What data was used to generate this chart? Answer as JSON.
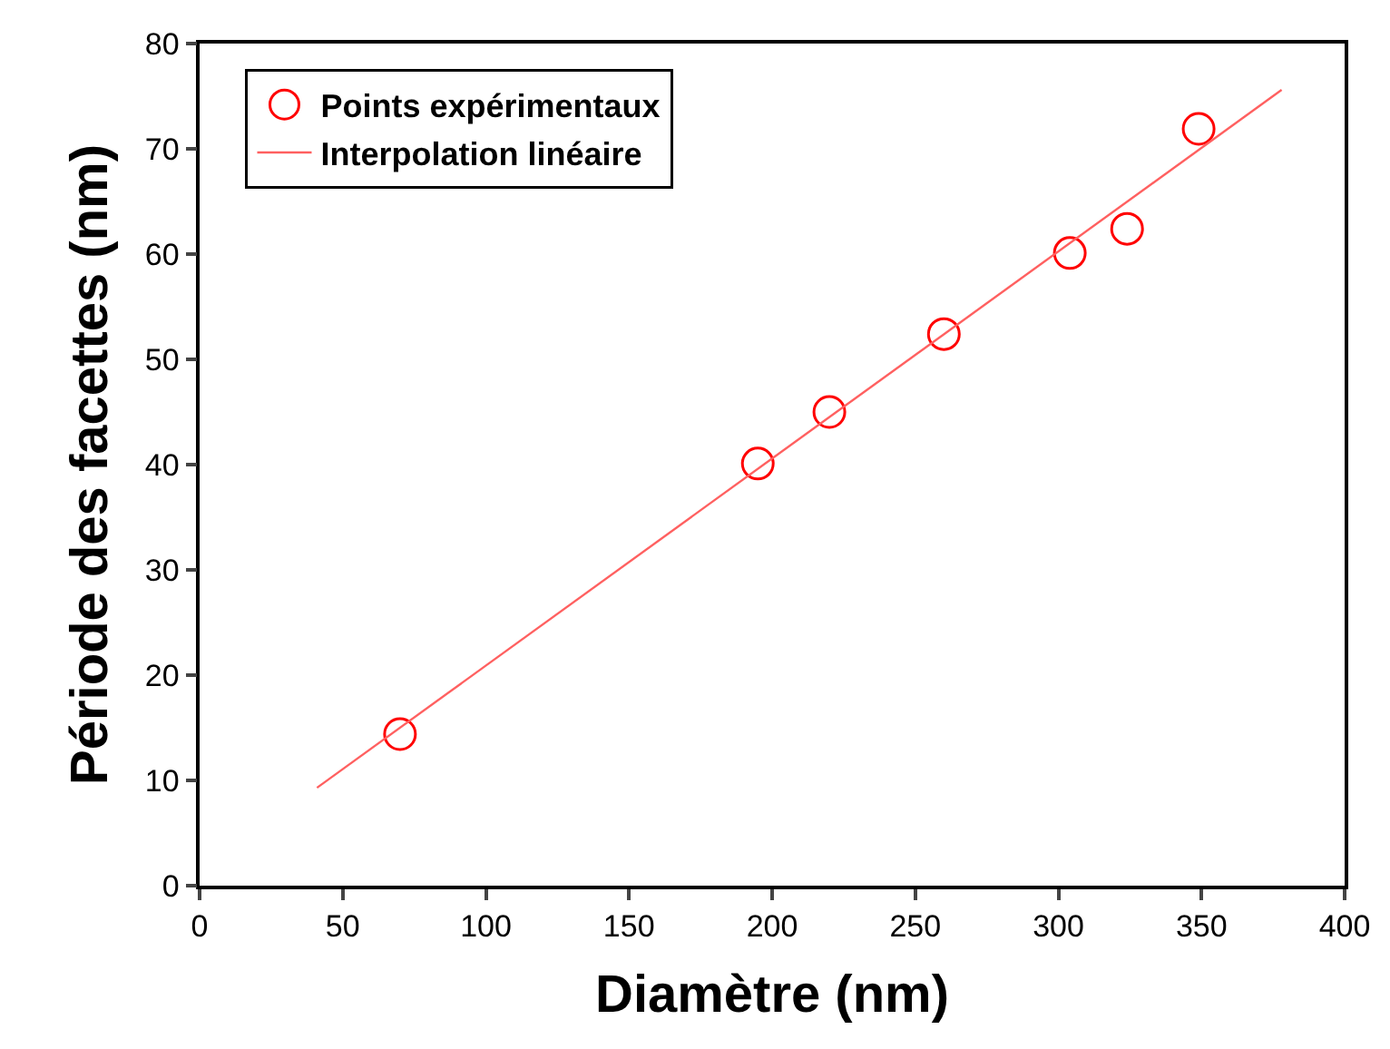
{
  "chart_data": {
    "type": "scatter",
    "xlabel": "Diamètre (nm)",
    "ylabel": "Période des facettes (nm)",
    "series": [
      {
        "name": "Points expérimentaux",
        "color": "#ff0000",
        "marker": "circle",
        "x": [
          70,
          195,
          220,
          260,
          304,
          324,
          349
        ],
        "values": [
          14.4,
          40.1,
          45.0,
          52.4,
          60.1,
          62.4,
          71.9
        ]
      },
      {
        "name": "Interpolation linéaire",
        "type": "line",
        "color": "#ff6060",
        "line_style": "solid",
        "x": [
          41,
          378
        ],
        "values": [
          9.3,
          75.6
        ]
      }
    ],
    "xlim": [
      0,
      400
    ],
    "xticks": [
      0,
      50,
      100,
      150,
      200,
      250,
      300,
      350,
      400
    ],
    "ylim": [
      0,
      80
    ],
    "yticks": [
      0,
      10,
      20,
      30,
      40,
      50,
      60,
      70,
      80
    ],
    "grid": false,
    "legend": "top left"
  }
}
